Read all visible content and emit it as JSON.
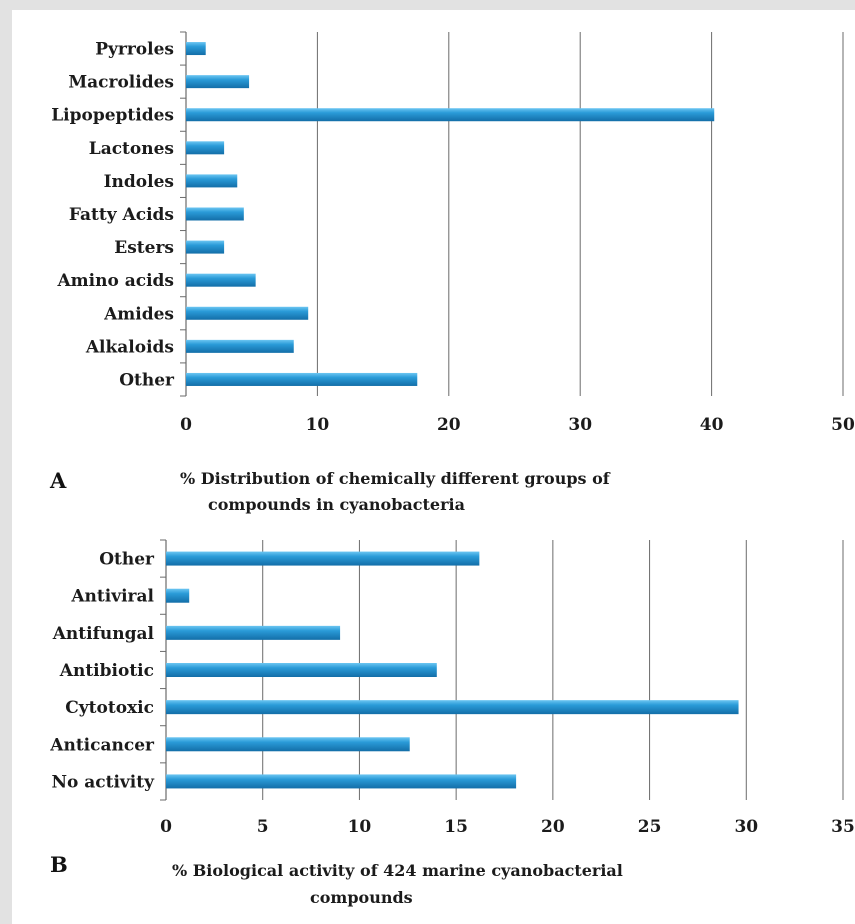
{
  "chart_data": [
    {
      "panel": "A",
      "type": "bar",
      "orientation": "horizontal",
      "title": "",
      "caption": [
        "% Distribution of chemically different groups of",
        "compounds in cyanobacteria"
      ],
      "categories": [
        "Pyrroles",
        "Macrolides",
        "Lipopeptides",
        "Lactones",
        "Indoles",
        "Fatty Acids",
        "Esters",
        "Amino acids",
        "Amides",
        "Alkaloids",
        "Other"
      ],
      "values": [
        1.5,
        4.8,
        40.2,
        2.9,
        3.9,
        4.4,
        2.9,
        5.3,
        9.3,
        8.2,
        17.6
      ],
      "xlim": [
        0,
        50
      ],
      "xticks": [
        0,
        10,
        20,
        30,
        40,
        50
      ],
      "grid": "vertical",
      "color": "#2596d4"
    },
    {
      "panel": "B",
      "type": "bar",
      "orientation": "horizontal",
      "title": "",
      "caption": [
        "% Biological activity of 424 marine cyanobacterial",
        "compounds"
      ],
      "categories": [
        "Other",
        "Antiviral",
        "Antifungal",
        "Antibiotic",
        "Cytotoxic",
        "Anticancer",
        "No activity"
      ],
      "values": [
        16.2,
        1.2,
        9.0,
        14.0,
        29.6,
        12.6,
        18.1
      ],
      "xlim": [
        0,
        35
      ],
      "xticks": [
        0,
        5,
        10,
        15,
        20,
        25,
        30,
        35
      ],
      "grid": "vertical",
      "color": "#2596d4"
    }
  ]
}
